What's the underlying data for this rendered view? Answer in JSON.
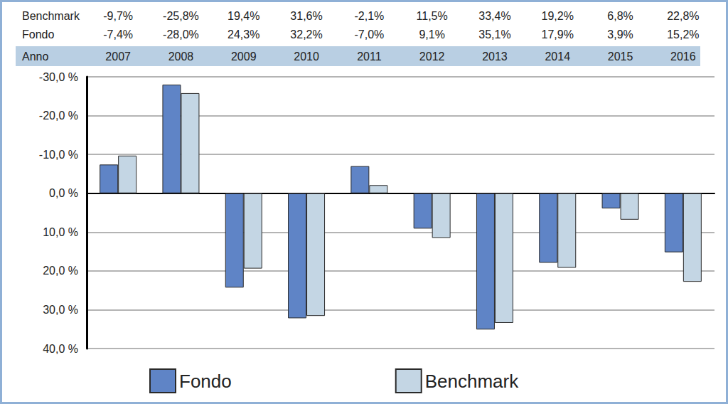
{
  "chart_data": {
    "type": "bar",
    "xlabel": "Anno",
    "categories": [
      "2007",
      "2008",
      "2009",
      "2010",
      "2011",
      "2012",
      "2013",
      "2014",
      "2015",
      "2016"
    ],
    "series": [
      {
        "name": "Fondo",
        "color": "#5f84c6",
        "values": [
          -7.4,
          -28.0,
          24.3,
          32.2,
          -7.0,
          9.1,
          35.1,
          17.9,
          3.9,
          15.2
        ],
        "value_labels": [
          "-7,4%",
          "-28,0%",
          "24,3%",
          "32,2%",
          "-7,0%",
          "9,1%",
          "35,1%",
          "17,9%",
          "3,9%",
          "15,2%"
        ]
      },
      {
        "name": "Benchmark",
        "color": "#c4d6e4",
        "values": [
          -9.7,
          -25.8,
          19.4,
          31.6,
          -2.1,
          11.5,
          33.4,
          19.2,
          6.8,
          22.8
        ],
        "value_labels": [
          "-9,7%",
          "-25,8%",
          "19,4%",
          "31,6%",
          "-2,1%",
          "11,5%",
          "33,4%",
          "19,2%",
          "6,8%",
          "22,8%"
        ]
      }
    ],
    "ylim": [
      -30,
      40
    ],
    "yticks": [
      {
        "value": -30,
        "label": "-30,0 %"
      },
      {
        "value": -20,
        "label": "-20,0 %"
      },
      {
        "value": -10,
        "label": "-10,0 %"
      },
      {
        "value": 0,
        "label": "0,0 %"
      },
      {
        "value": 10,
        "label": "10,0 %"
      },
      {
        "value": 20,
        "label": "20,0 %"
      },
      {
        "value": 30,
        "label": "30,0 %"
      },
      {
        "value": 40,
        "label": "40,0 %"
      }
    ],
    "grid": true,
    "legend": "bottom",
    "tick_labels": "y"
  }
}
